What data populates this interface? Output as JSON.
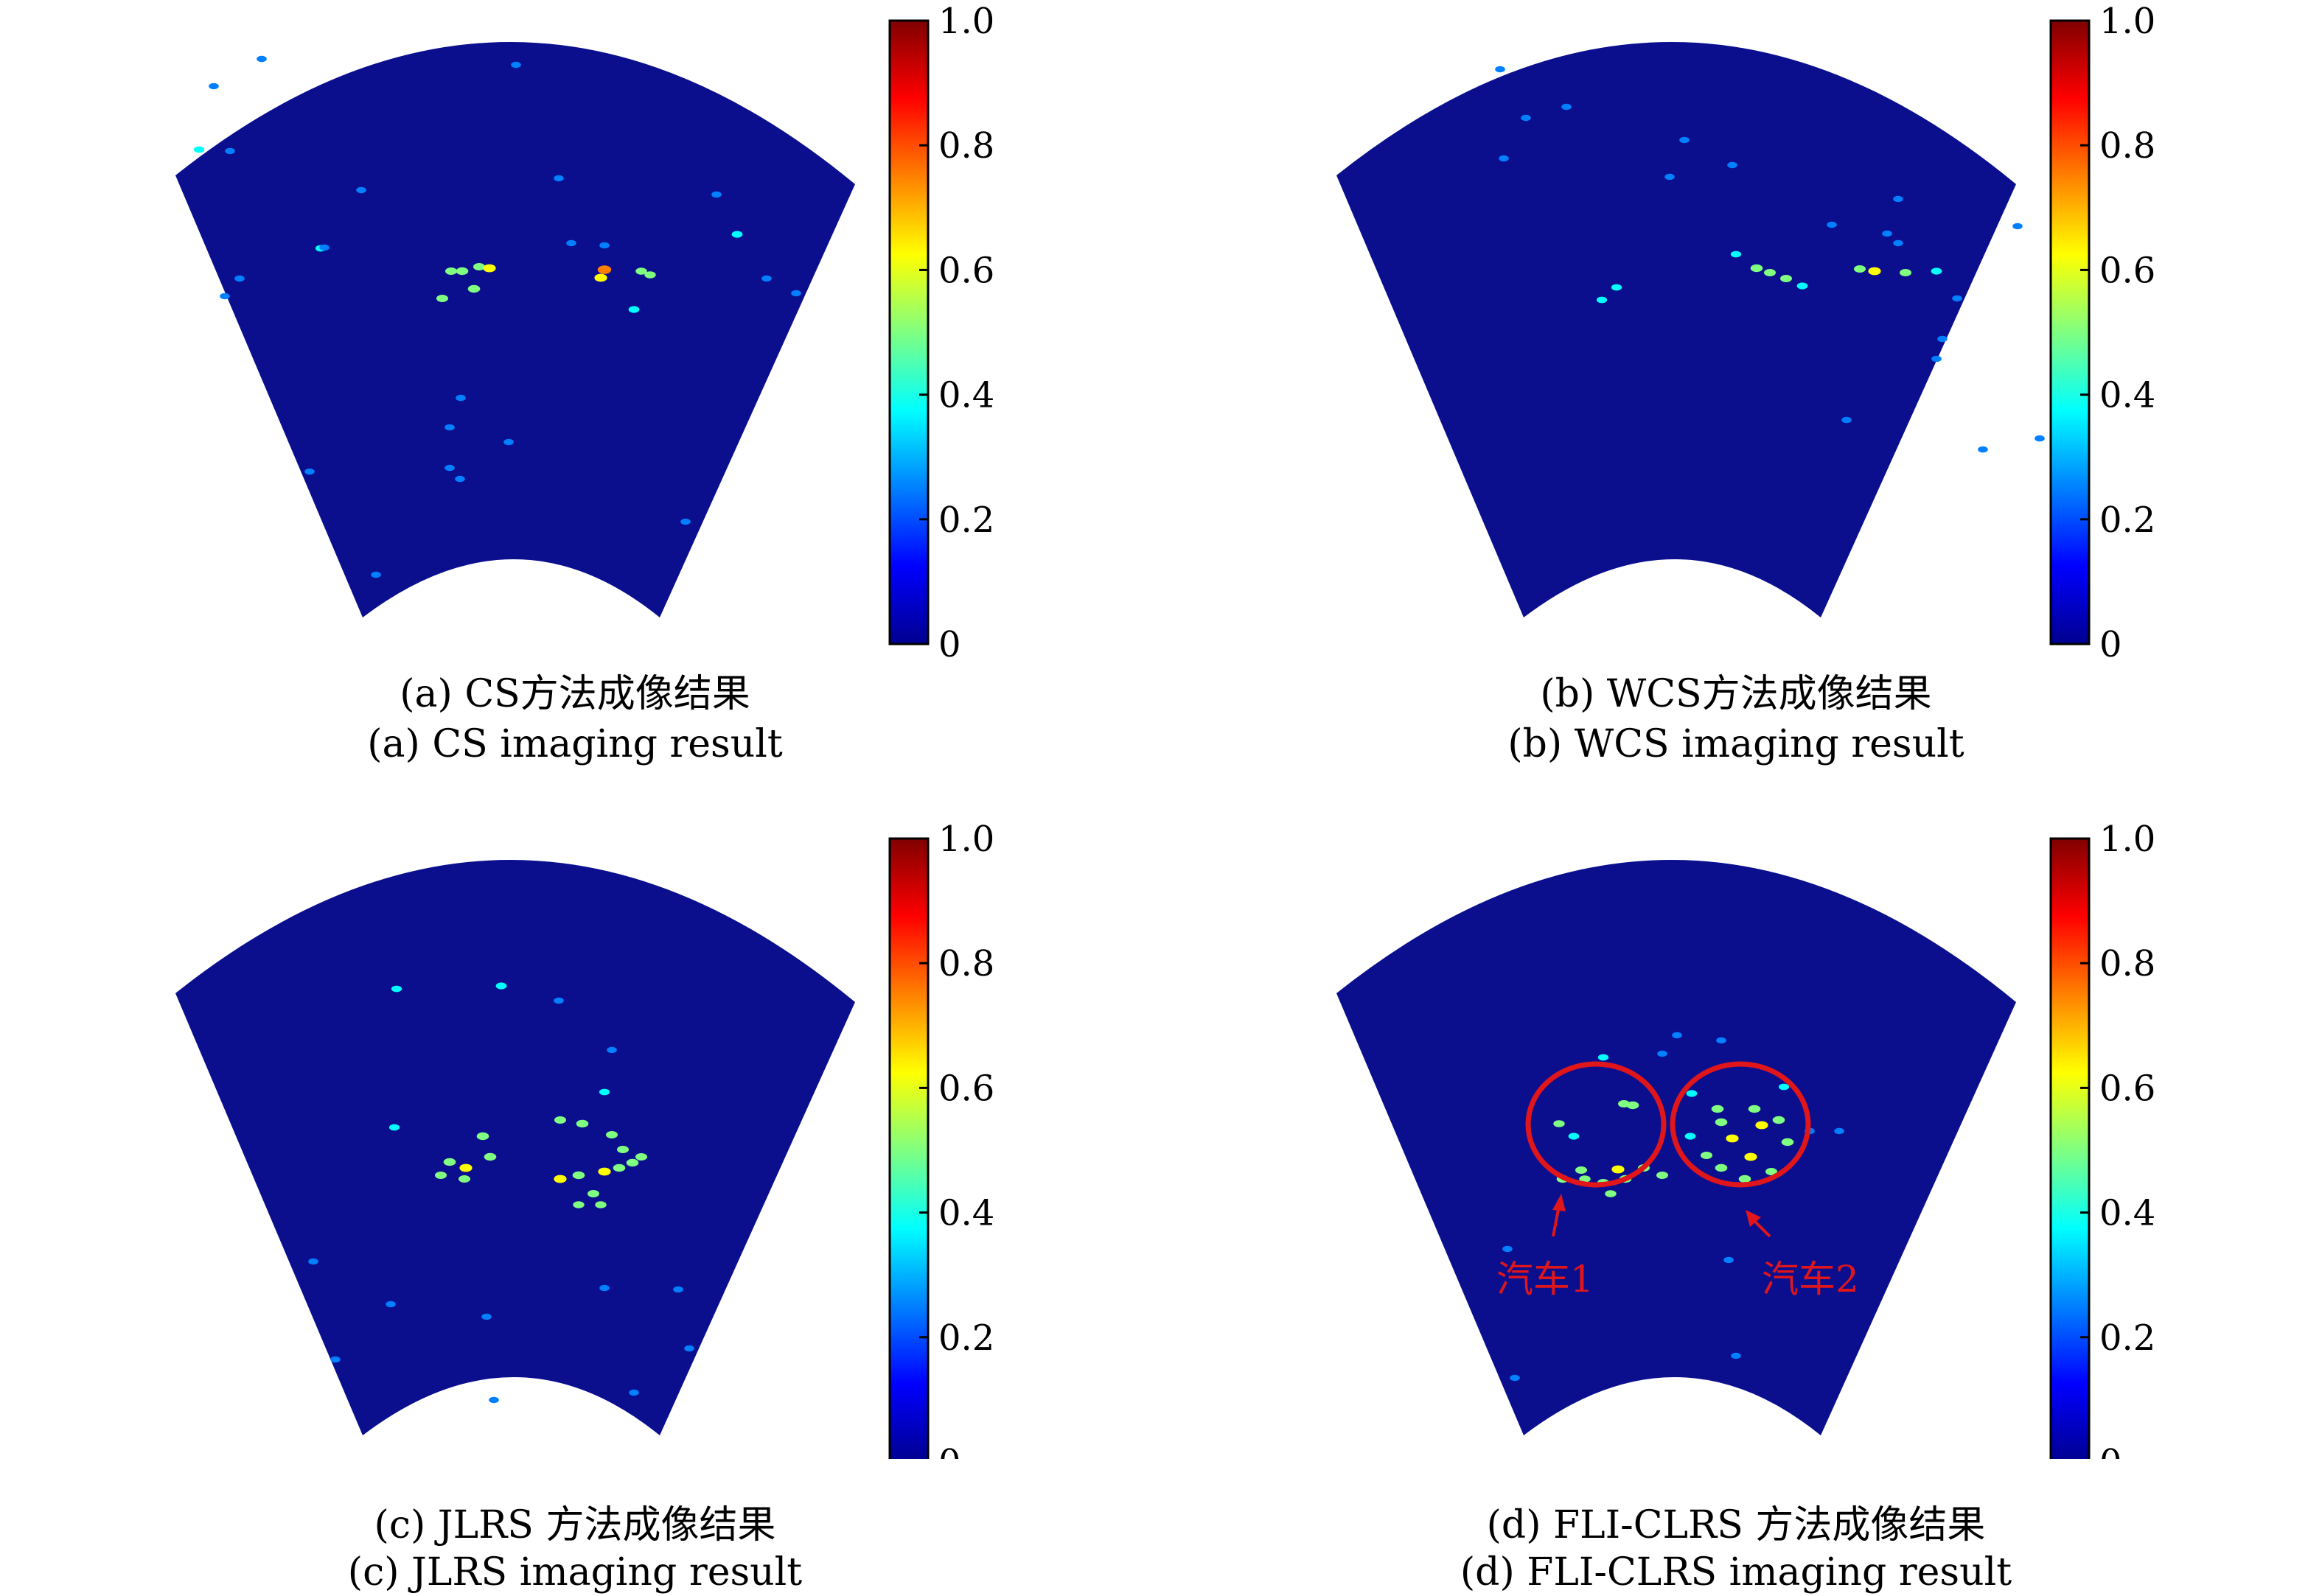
{
  "colors": {
    "background_field": "#0b0f8e",
    "annotation": "#e0161b",
    "colormap": [
      "#00008f",
      "#0000ff",
      "#0080ff",
      "#00ffff",
      "#80ff80",
      "#ffff00",
      "#ff8000",
      "#ff0000",
      "#800000"
    ]
  },
  "colorbar": {
    "ticks": [
      "0",
      "0.2",
      "0.4",
      "0.6",
      "0.8",
      "1.0"
    ],
    "range": [
      0,
      1.0
    ]
  },
  "panels": [
    {
      "caption_cn": "(a) CS方法成像结果",
      "caption_en": "(a) CS imaging result"
    },
    {
      "caption_cn": "(b) WCS方法成像结果",
      "caption_en": "(b) WCS imaging result"
    },
    {
      "caption_cn": "(c) JLRS 方法成像结果",
      "caption_en": "(c) JLRS imaging result"
    },
    {
      "caption_cn": "(d) FLI-CLRS 方法成像结果",
      "caption_en": "(d) FLI-CLRS imaging result",
      "annotations": [
        "汽车1",
        "汽车2"
      ]
    }
  ]
}
